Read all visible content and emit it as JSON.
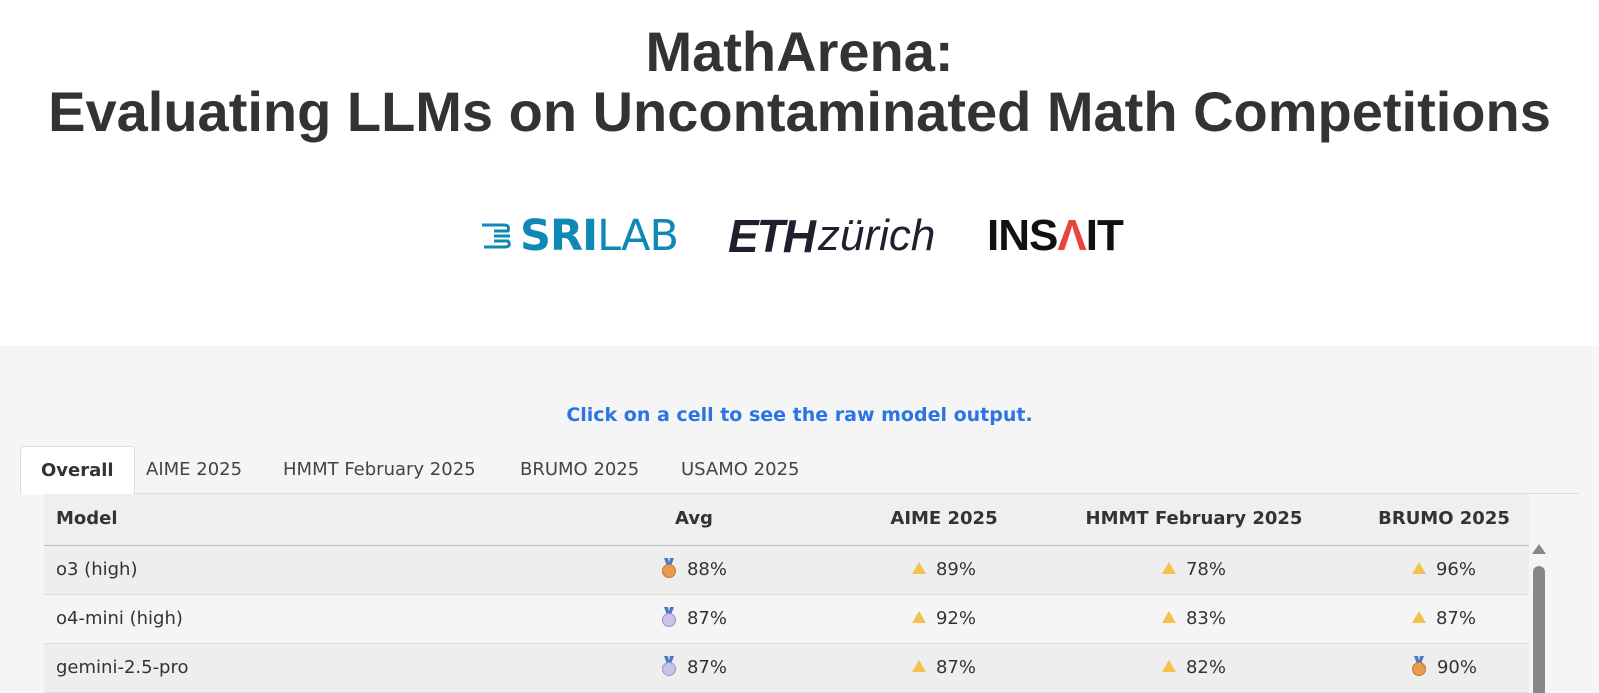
{
  "header": {
    "title_line1": "MathArena:",
    "title_line2": "Evaluating LLMs on Uncontaminated Math Competitions",
    "logos": {
      "srilab_bold": "SRI",
      "srilab_light": "LAB",
      "eth_bold": "ETH",
      "eth_light": "zürich",
      "insait_pre": "INS",
      "insait_a": "Λ",
      "insait_post": "IT"
    }
  },
  "hint": "Click on a cell to see the raw model output.",
  "tabs": [
    {
      "label": "Overall",
      "active": true
    },
    {
      "label": "AIME 2025",
      "active": false
    },
    {
      "label": "HMMT February 2025",
      "active": false
    },
    {
      "label": "BRUMO 2025",
      "active": false
    },
    {
      "label": "USAMO 2025",
      "active": false
    }
  ],
  "table": {
    "headers": {
      "model": "Model",
      "avg": "Avg",
      "aime": "AIME 2025",
      "hmmt": "HMMT February 2025",
      "brumo": "BRUMO 2025"
    },
    "rows": [
      {
        "model": "o3 (high)",
        "avg": {
          "value": "88%",
          "icon": "bronze-medal-icon"
        },
        "aime": {
          "value": "89%",
          "icon": "warning-icon"
        },
        "hmmt": {
          "value": "78%",
          "icon": "warning-icon"
        },
        "brumo": {
          "value": "96%",
          "icon": "warning-icon"
        }
      },
      {
        "model": "o4-mini (high)",
        "avg": {
          "value": "87%",
          "icon": "silver-medal-icon"
        },
        "aime": {
          "value": "92%",
          "icon": "warning-icon"
        },
        "hmmt": {
          "value": "83%",
          "icon": "warning-icon"
        },
        "brumo": {
          "value": "87%",
          "icon": "warning-icon"
        }
      },
      {
        "model": "gemini-2.5-pro",
        "avg": {
          "value": "87%",
          "icon": "silver-medal-icon"
        },
        "aime": {
          "value": "87%",
          "icon": "warning-icon"
        },
        "hmmt": {
          "value": "82%",
          "icon": "warning-icon"
        },
        "brumo": {
          "value": "90%",
          "icon": "bronze-medal-icon"
        }
      }
    ]
  },
  "colors": {
    "hint": "#2a74e6",
    "srilab": "#0e88b4",
    "insait_accent": "#e8453c",
    "content_bg": "#f5f5f5"
  }
}
